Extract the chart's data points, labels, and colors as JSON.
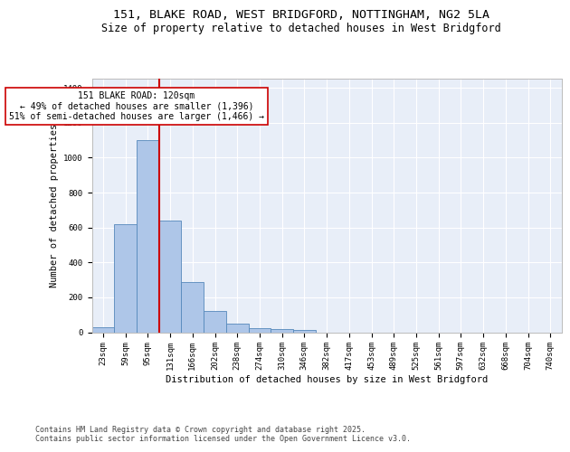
{
  "title1": "151, BLAKE ROAD, WEST BRIDGFORD, NOTTINGHAM, NG2 5LA",
  "title2": "Size of property relative to detached houses in West Bridgford",
  "xlabel": "Distribution of detached houses by size in West Bridgford",
  "ylabel": "Number of detached properties",
  "categories": [
    "23sqm",
    "59sqm",
    "95sqm",
    "131sqm",
    "166sqm",
    "202sqm",
    "238sqm",
    "274sqm",
    "310sqm",
    "346sqm",
    "382sqm",
    "417sqm",
    "453sqm",
    "489sqm",
    "525sqm",
    "561sqm",
    "597sqm",
    "632sqm",
    "668sqm",
    "704sqm",
    "740sqm"
  ],
  "bar_values": [
    30,
    620,
    1100,
    640,
    290,
    120,
    50,
    25,
    20,
    12,
    0,
    0,
    0,
    0,
    0,
    0,
    0,
    0,
    0,
    0,
    0
  ],
  "bar_color": "#aec6e8",
  "bar_edge_color": "#5588bb",
  "bg_color": "#e8eef8",
  "grid_color": "#ffffff",
  "vline_x_idx": 3,
  "vline_color": "#cc0000",
  "annotation_text": "151 BLAKE ROAD: 120sqm\n← 49% of detached houses are smaller (1,396)\n51% of semi-detached houses are larger (1,466) →",
  "annotation_box_color": "#ffffff",
  "annotation_box_edge": "#cc0000",
  "footnote": "Contains HM Land Registry data © Crown copyright and database right 2025.\nContains public sector information licensed under the Open Government Licence v3.0.",
  "ylim": [
    0,
    1450
  ],
  "yticks": [
    0,
    200,
    400,
    600,
    800,
    1000,
    1200,
    1400
  ],
  "title_fontsize": 9.5,
  "subtitle_fontsize": 8.5,
  "axis_label_fontsize": 7.5,
  "tick_fontsize": 6.5,
  "annotation_fontsize": 7,
  "footnote_fontsize": 6
}
